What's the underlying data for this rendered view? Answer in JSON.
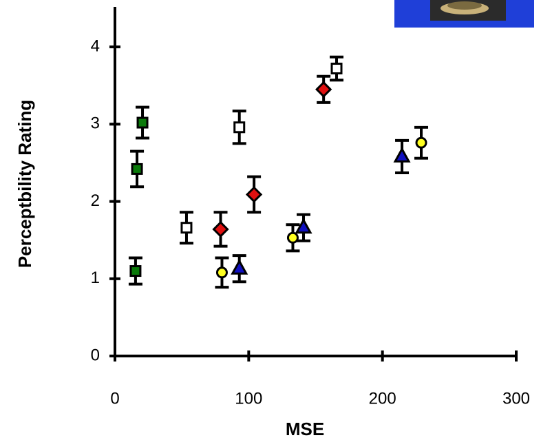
{
  "chart_data": {
    "type": "scatter",
    "x_label": "MSE",
    "y_label": "Perceptbility Rating",
    "xlim": [
      0,
      300
    ],
    "ylim": [
      0,
      4.5
    ],
    "xticks": [
      0,
      100,
      200,
      300
    ],
    "yticks": [
      0,
      1,
      2,
      3,
      4
    ],
    "series": [
      {
        "color": "#0a7a0a",
        "marker": "square",
        "x": [
          15.4,
          16.5,
          20.6
        ],
        "values": [
          1.1,
          2.42,
          3.02
        ],
        "errors": [
          0.17,
          0.23,
          0.2
        ]
      },
      {
        "color": "#ffffff",
        "marker": "square",
        "x": [
          53.5,
          93,
          165.7
        ],
        "values": [
          1.66,
          2.96,
          3.72
        ],
        "errors": [
          0.2,
          0.21,
          0.15
        ]
      },
      {
        "color": "#e01010",
        "marker": "diamond",
        "x": [
          79,
          104,
          156
        ],
        "values": [
          1.64,
          2.09,
          3.45
        ],
        "errors": [
          0.22,
          0.23,
          0.17
        ]
      },
      {
        "color": "#ffff20",
        "marker": "circle",
        "x": [
          80,
          133,
          229
        ],
        "values": [
          1.08,
          1.53,
          2.76
        ],
        "errors": [
          0.19,
          0.17,
          0.2
        ]
      },
      {
        "color": "#1010c0",
        "marker": "triangle",
        "x": [
          93,
          141,
          214.6
        ],
        "values": [
          1.13,
          1.66,
          2.58
        ],
        "errors": [
          0.17,
          0.17,
          0.21
        ]
      }
    ]
  }
}
